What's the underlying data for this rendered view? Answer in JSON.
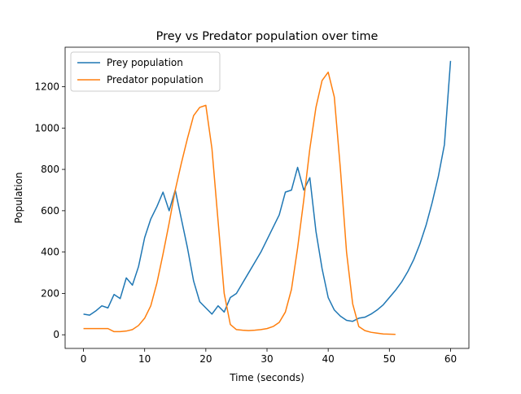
{
  "chart_data": {
    "type": "line",
    "title": "Prey vs Predator population over time",
    "xlabel": "Time (seconds)",
    "ylabel": "Population",
    "x": [
      0,
      1,
      2,
      3,
      4,
      5,
      6,
      7,
      8,
      9,
      10,
      11,
      12,
      13,
      14,
      15,
      16,
      17,
      18,
      19,
      20,
      21,
      22,
      23,
      24,
      25,
      26,
      27,
      28,
      29,
      30,
      31,
      32,
      33,
      34,
      35,
      36,
      37,
      38,
      39,
      40,
      41,
      42,
      43,
      44,
      45,
      46,
      47,
      48,
      49,
      50,
      51,
      52,
      53,
      54,
      55,
      56,
      57,
      58,
      59,
      60
    ],
    "series": [
      {
        "name": "Prey population",
        "color": "#1f77b4",
        "values": [
          100,
          95,
          115,
          140,
          130,
          195,
          175,
          275,
          240,
          330,
          470,
          560,
          620,
          690,
          600,
          700,
          560,
          420,
          260,
          160,
          130,
          100,
          140,
          110,
          180,
          200,
          250,
          300,
          350,
          400,
          460,
          520,
          580,
          690,
          700,
          810,
          700,
          760,
          500,
          320,
          180,
          120,
          90,
          70,
          65,
          80,
          85,
          100,
          120,
          145,
          180,
          215,
          255,
          305,
          365,
          440,
          530,
          640,
          765,
          920,
          1325
        ]
      },
      {
        "name": "Predator population",
        "color": "#ff7f0e",
        "values": [
          30,
          30,
          30,
          30,
          30,
          15,
          15,
          18,
          25,
          45,
          80,
          140,
          250,
          390,
          540,
          700,
          830,
          950,
          1060,
          1100,
          1110,
          900,
          550,
          200,
          50,
          25,
          22,
          20,
          22,
          25,
          30,
          40,
          60,
          110,
          220,
          420,
          650,
          900,
          1100,
          1230,
          1270,
          1150,
          800,
          400,
          150,
          40,
          20,
          12,
          8,
          4,
          3,
          2,
          null,
          null,
          null,
          null,
          null,
          null,
          null,
          null,
          null
        ]
      }
    ],
    "xlim": [
      -3,
      63
    ],
    "ylim": [
      -66,
      1391
    ],
    "xticks": [
      0,
      10,
      20,
      30,
      40,
      50,
      60
    ],
    "yticks": [
      0,
      200,
      400,
      600,
      800,
      1000,
      1200
    ],
    "legend": "upper left"
  }
}
